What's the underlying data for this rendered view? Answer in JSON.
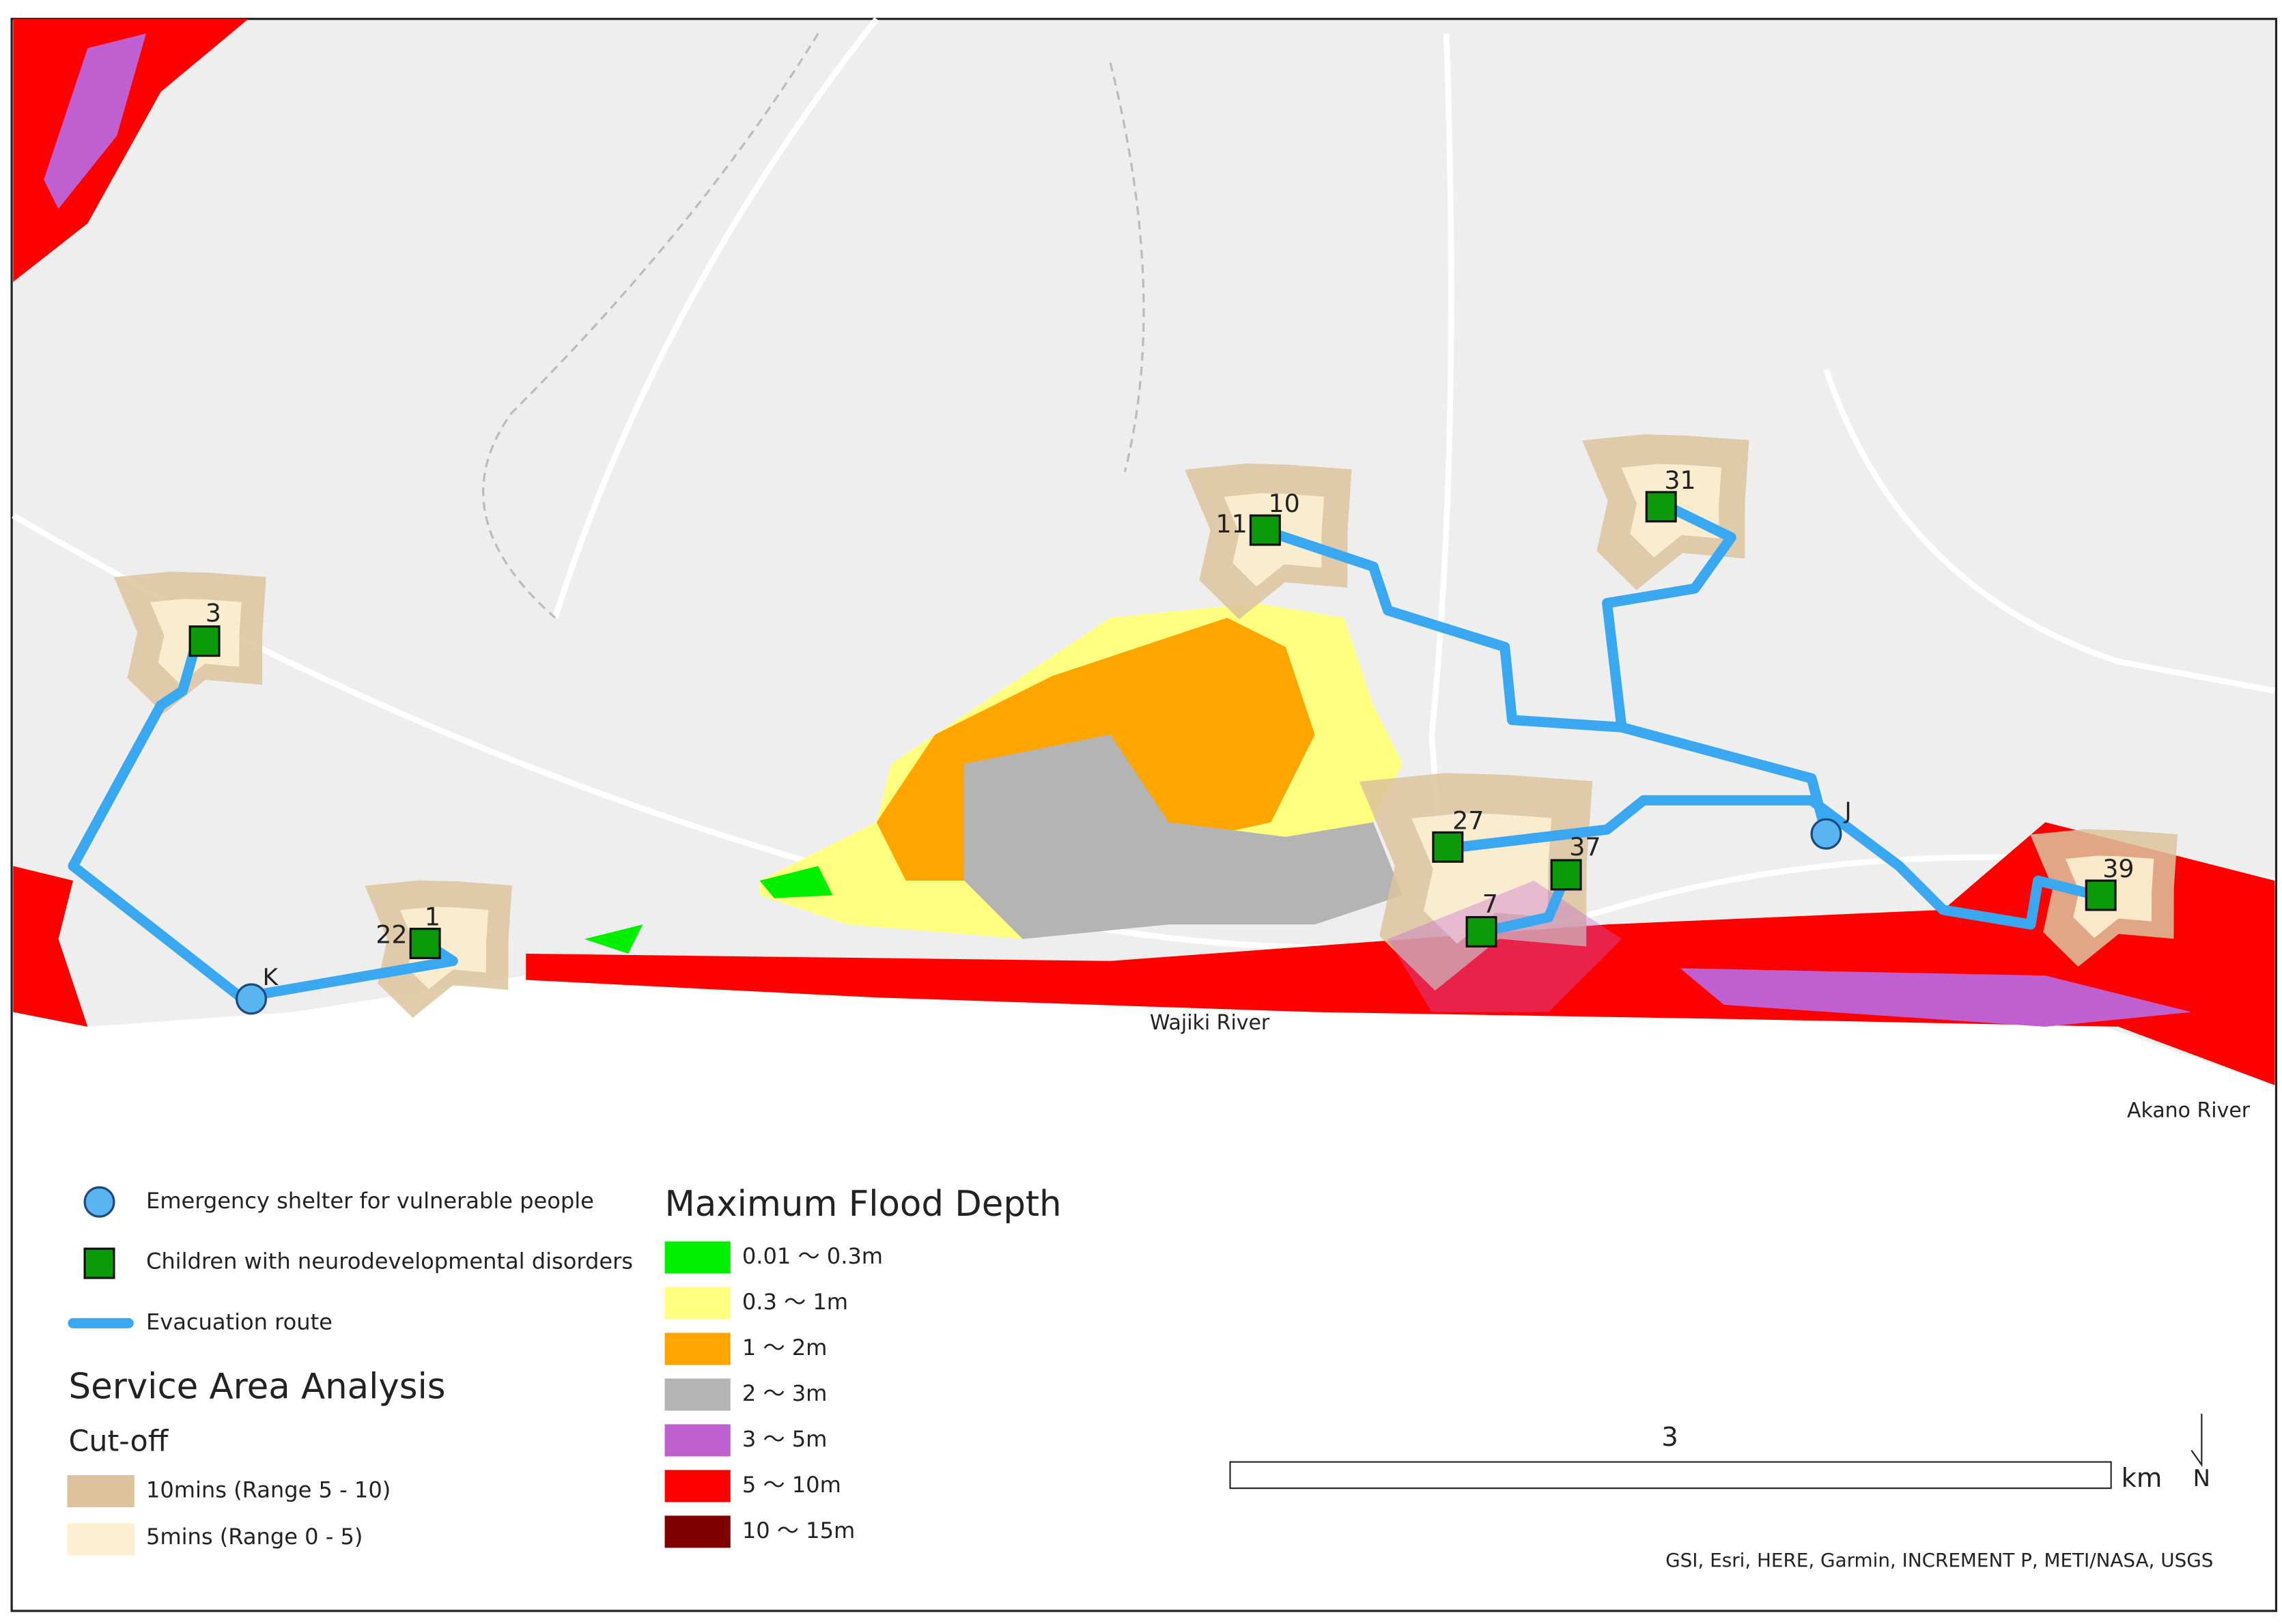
{
  "map": {
    "rivers": [
      "Wajiki River",
      "Akano River"
    ],
    "shelters": [
      "K",
      "J"
    ],
    "children": [
      "3",
      "22",
      "1",
      "11",
      "10",
      "27",
      "37",
      "7",
      "31",
      "39"
    ]
  },
  "legend": {
    "symbols": [
      {
        "label": "Emergency shelter for vulnerable people",
        "color": "#5ab4f0"
      },
      {
        "label": "Children with neurodevelopmental disorders",
        "color": "#0a9a0a"
      },
      {
        "label": "Evacuation route",
        "color": "#3aa8f0"
      }
    ],
    "service_area": {
      "title": "Service Area Analysis",
      "subtitle": "Cut-off",
      "items": [
        {
          "label": "10mins (Range 5 - 10)",
          "color": "#dcc39c"
        },
        {
          "label": "5mins (Range 0 - 5)",
          "color": "#fdf0d2"
        }
      ]
    },
    "flood": {
      "title": "Maximum Flood Depth",
      "items": [
        {
          "label": "0.01 ～ 0.3m",
          "color": "#00f000"
        },
        {
          "label": "0.3 ～ 1m",
          "color": "#ffff80"
        },
        {
          "label": "1 ～ 2m",
          "color": "#ffa500"
        },
        {
          "label": "2 ～ 3m",
          "color": "#b4b4b4"
        },
        {
          "label": "3 ～ 5m",
          "color": "#c060d0"
        },
        {
          "label": "5 ～ 10m",
          "color": "#ff0000"
        },
        {
          "label": "10 ～ 15m",
          "color": "#800000"
        }
      ]
    }
  },
  "scale_bar": {
    "distance": 3,
    "unit": "km"
  },
  "north": "N",
  "attribution": "GSI, Esri, HERE, Garmin, INCREMENT P, METI/NASA, USGS"
}
